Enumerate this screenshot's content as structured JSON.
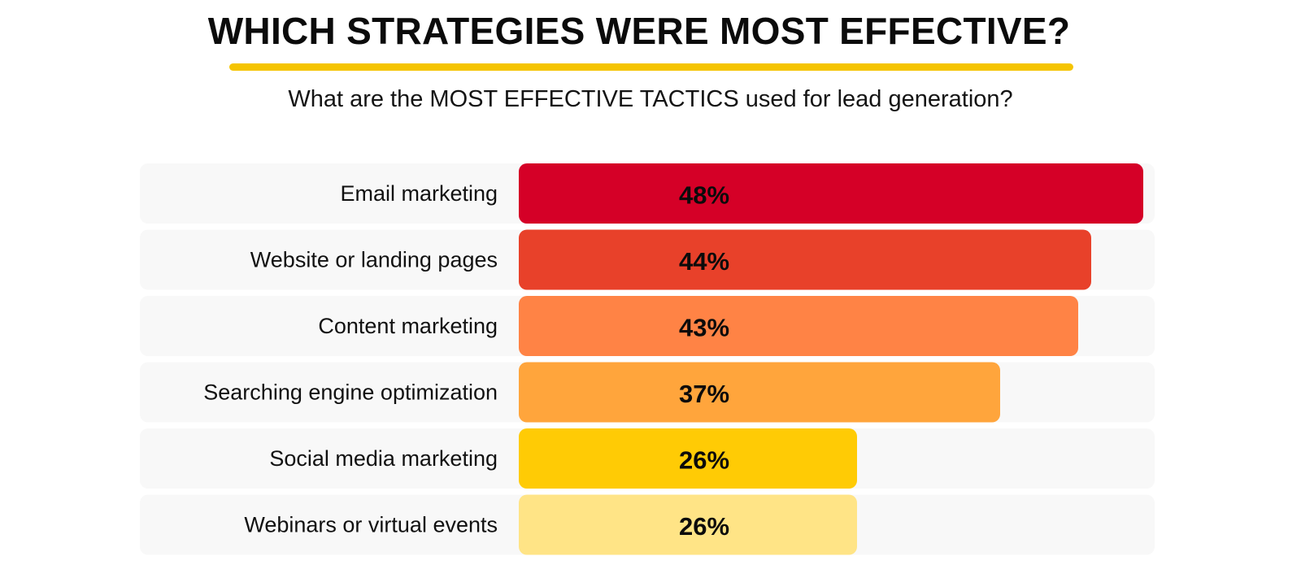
{
  "header": {
    "title": "WHICH STRATEGIES WERE MOST EFFECTIVE?",
    "subtitle": "What are the MOST EFFECTIVE TACTICS used for lead generation?",
    "underline_color": "#f5c400"
  },
  "chart_data": {
    "type": "bar",
    "orientation": "horizontal",
    "title": "WHICH STRATEGIES WERE MOST EFFECTIVE?",
    "subtitle": "What are the MOST EFFECTIVE TACTICS used for lead generation?",
    "categories": [
      "Email marketing",
      "Website or landing pages",
      "Content marketing",
      "Searching engine optimization",
      "Social media marketing",
      "Webinars or virtual events"
    ],
    "values": [
      48,
      44,
      43,
      37,
      26,
      26
    ],
    "value_labels": [
      "48%",
      "44%",
      "43%",
      "37%",
      "26%",
      "26%"
    ],
    "unit": "%",
    "colors": [
      "#d50027",
      "#e8412a",
      "#ff8345",
      "#ffa53c",
      "#ffcb05",
      "#ffe486"
    ],
    "row_background_color": "#f8f8f8",
    "xlabel": "",
    "ylabel": "",
    "grid": false,
    "legend": "none"
  }
}
